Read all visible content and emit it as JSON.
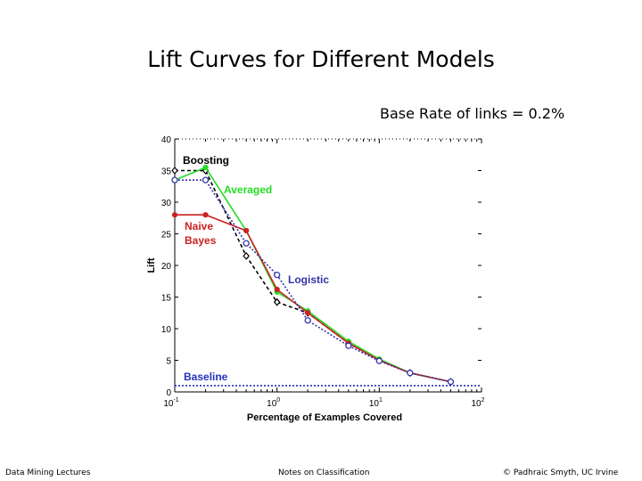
{
  "slide": {
    "title": "Lift Curves for Different Models",
    "subtitle": "Base Rate of links = 0.2%"
  },
  "footer": {
    "left": "Data Mining Lectures",
    "center": "Notes on Classification",
    "right": "© Padhraic Smyth, UC Irvine"
  },
  "chart_data": {
    "type": "line",
    "xlabel": "Percentage of Examples Covered",
    "ylabel": "Lift",
    "xscale": "log",
    "xlim": [
      0.1,
      100
    ],
    "ylim": [
      0,
      40
    ],
    "x_tick_labels": [
      "10^-1",
      "10^0",
      "10^1",
      "10^2"
    ],
    "y_ticks": [
      0,
      5,
      10,
      15,
      20,
      25,
      30,
      35,
      40
    ],
    "grid": false,
    "series": [
      {
        "name": "Boosting",
        "color": "#000000",
        "marker": "diamond",
        "dash": "4,3",
        "x": [
          0.1,
          0.2,
          0.5,
          1,
          2,
          5,
          10,
          20,
          50
        ],
        "y": [
          35.0,
          35.0,
          21.5,
          14.2,
          12.5,
          7.7,
          5.0,
          3.0,
          1.6
        ]
      },
      {
        "name": "Averaged",
        "color": "#22dd22",
        "marker": "dot",
        "dash": "",
        "x": [
          0.1,
          0.2,
          0.5,
          1,
          2,
          5,
          10,
          20,
          50
        ],
        "y": [
          33.5,
          35.5,
          25.5,
          15.8,
          12.8,
          8.0,
          5.2,
          3.0,
          1.6
        ]
      },
      {
        "name": "Naive Bayes",
        "color": "#cc2222",
        "marker": "dot",
        "dash": "",
        "x": [
          0.1,
          0.2,
          0.5,
          1,
          2,
          5,
          10,
          20,
          50
        ],
        "y": [
          28.0,
          28.0,
          25.5,
          16.2,
          12.5,
          7.7,
          5.0,
          3.0,
          1.6
        ]
      },
      {
        "name": "Logistic",
        "color": "#3333aa",
        "marker": "circle",
        "dash": "2,2",
        "x": [
          0.1,
          0.2,
          0.5,
          1,
          2,
          5,
          10,
          20,
          50
        ],
        "y": [
          33.5,
          33.5,
          23.5,
          18.5,
          11.3,
          7.3,
          4.9,
          3.0,
          1.6
        ]
      },
      {
        "name": "Baseline",
        "color": "#2233bb",
        "marker": "none",
        "dash": "2,2",
        "x": [
          0.1,
          100
        ],
        "y": [
          1,
          1
        ]
      }
    ],
    "annotations": [
      {
        "text": "Boosting",
        "color": "#000000"
      },
      {
        "text": "Averaged",
        "color": "#22dd22"
      },
      {
        "text": "Naive",
        "color": "#cc2222"
      },
      {
        "text": "Bayes",
        "color": "#cc2222"
      },
      {
        "text": "Logistic",
        "color": "#3333aa"
      },
      {
        "text": "Baseline",
        "color": "#2233bb"
      }
    ]
  }
}
